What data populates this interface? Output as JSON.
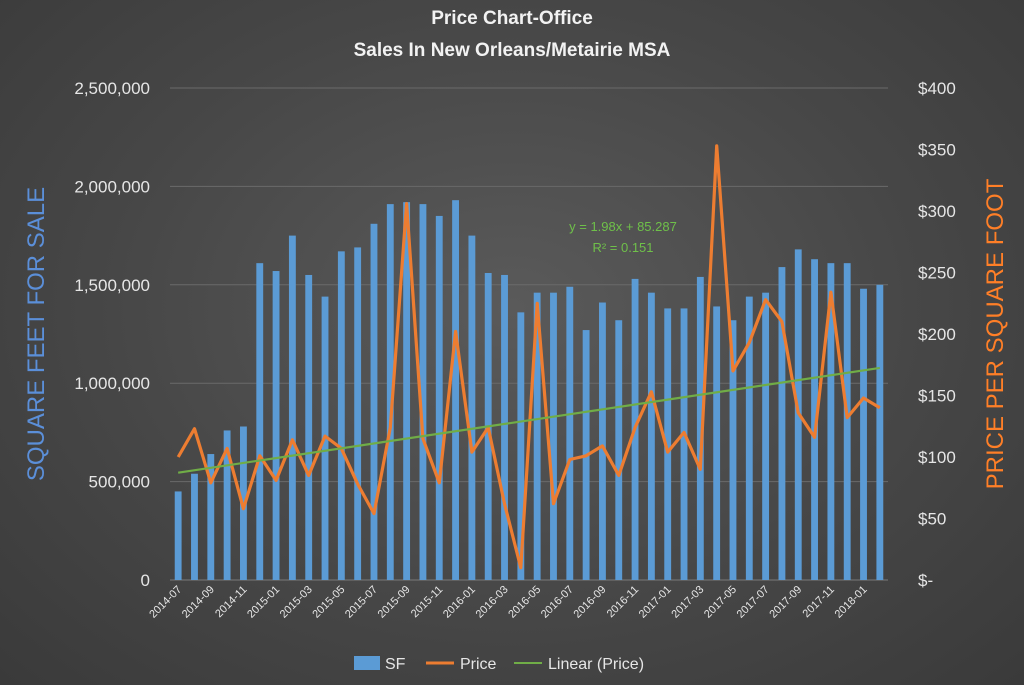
{
  "chart_data": {
    "type": "bar",
    "title": [
      "Price Chart-Office",
      "Sales In New Orleans/Metairie MSA"
    ],
    "ylabel": "SQUARE FEET FOR SALE",
    "y2label": "PRICE PER SQUARE FOOT",
    "ylim": [
      0,
      2500000
    ],
    "y2lim": [
      0,
      400
    ],
    "y_ticks": [
      "0",
      "500,000",
      "1,000,000",
      "1,500,000",
      "2,000,000",
      "2,500,000"
    ],
    "y2_ticks": [
      "$-",
      "$50",
      "$100",
      "$150",
      "$200",
      "$250",
      "$300",
      "$350",
      "$400"
    ],
    "categories": [
      "2014-07",
      "2014-08",
      "2014-09",
      "2014-10",
      "2014-11",
      "2014-12",
      "2015-01",
      "2015-02",
      "2015-03",
      "2015-04",
      "2015-05",
      "2015-06",
      "2015-07",
      "2015-08",
      "2015-09",
      "2015-10",
      "2015-11",
      "2015-12",
      "2016-01",
      "2016-02",
      "2016-03",
      "2016-04",
      "2016-05",
      "2016-06",
      "2016-07",
      "2016-08",
      "2016-09",
      "2016-10",
      "2016-11",
      "2016-12",
      "2017-01",
      "2017-02",
      "2017-03",
      "2017-04",
      "2017-05",
      "2017-06",
      "2017-07",
      "2017-08",
      "2017-09",
      "2017-10",
      "2017-11",
      "2017-12",
      "2018-01",
      "2018-02"
    ],
    "x_tick_labels": [
      "2014-07",
      "2014-09",
      "2014-11",
      "2015-01",
      "2015-03",
      "2015-05",
      "2015-07",
      "2015-09",
      "2015-11",
      "2016-01",
      "2016-03",
      "2016-05",
      "2016-07",
      "2016-09",
      "2016-11",
      "2017-01",
      "2017-03",
      "2017-05",
      "2017-07",
      "2017-09",
      "2017-11",
      "2018-01"
    ],
    "grid": true,
    "legend_position": "bottom",
    "series": [
      {
        "name": "SF",
        "kind": "bar",
        "axis": "left",
        "color": "#5b9bd5",
        "values": [
          450000,
          540000,
          640000,
          760000,
          780000,
          1610000,
          1570000,
          1750000,
          1550000,
          1440000,
          1670000,
          1690000,
          1810000,
          1910000,
          1920000,
          1910000,
          1850000,
          1930000,
          1750000,
          1560000,
          1550000,
          1360000,
          1460000,
          1460000,
          1490000,
          1270000,
          1410000,
          1320000,
          1530000,
          1460000,
          1380000,
          1380000,
          1540000,
          1390000,
          1320000,
          1440000,
          1460000,
          1590000,
          1680000,
          1630000,
          1610000,
          1610000,
          1480000,
          1500000
        ]
      },
      {
        "name": "Price",
        "kind": "line",
        "axis": "right",
        "color": "#ed7d31",
        "values": [
          100,
          123,
          79,
          107,
          58,
          101,
          81,
          114,
          85,
          117,
          107,
          78,
          54,
          124,
          306,
          115,
          79,
          202,
          104,
          124,
          62,
          10,
          225,
          62,
          98,
          101,
          109,
          85,
          124,
          153,
          104,
          120,
          90,
          353,
          170,
          193,
          228,
          210,
          136,
          116,
          234,
          132,
          148,
          140
        ]
      },
      {
        "name": "Linear (Price)",
        "kind": "trendline",
        "axis": "right",
        "color": "#70ad47",
        "slope": 1.98,
        "intercept": 85.287
      }
    ],
    "annotation": {
      "equation": "y = 1.98x + 85.287",
      "r_squared": "R² = 0.151"
    }
  }
}
